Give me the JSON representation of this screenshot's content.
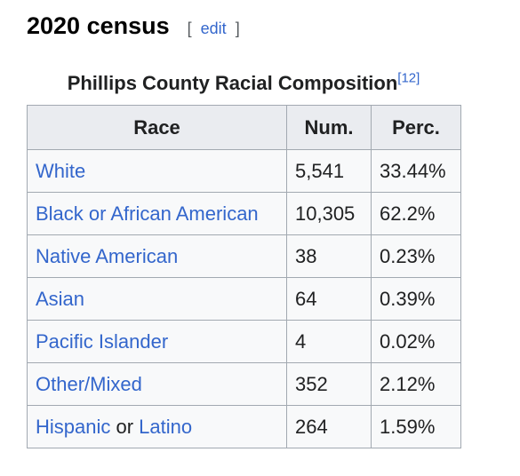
{
  "section": {
    "title": "2020 census",
    "edit_open": "[",
    "edit_label": "edit",
    "edit_close": "]"
  },
  "table": {
    "caption": "Phillips County Racial Composition",
    "caption_ref": "[12]",
    "headers": {
      "race": "Race",
      "num": "Num.",
      "perc": "Perc."
    },
    "rows": [
      {
        "race": "White",
        "num": "5,541",
        "perc": "33.44%"
      },
      {
        "race": "Black or African American",
        "num": "10,305",
        "perc": "62.2%"
      },
      {
        "race": "Native American",
        "num": "38",
        "perc": "0.23%"
      },
      {
        "race": "Asian",
        "num": "64",
        "perc": "0.39%"
      },
      {
        "race": "Pacific Islander",
        "num": "4",
        "perc": "0.02%"
      },
      {
        "race": "Other/Mixed",
        "num": "352",
        "perc": "2.12%"
      },
      {
        "race_part1": "Hispanic",
        "race_joiner": " or ",
        "race_part2": "Latino",
        "num": "264",
        "perc": "1.59%"
      }
    ]
  },
  "colors": {
    "link": "#3366cc",
    "header_bg": "#eaecf0",
    "cell_bg": "#f8f9fa",
    "border": "#a2a9b1",
    "text": "#202122"
  }
}
